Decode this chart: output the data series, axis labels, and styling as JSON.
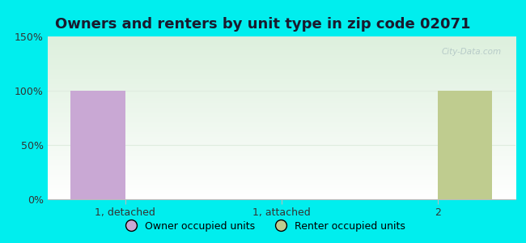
{
  "title": "Owners and renters by unit type in zip code 02071",
  "categories": [
    "1, detached",
    "1, attached",
    "2"
  ],
  "owner_values": [
    100,
    0,
    0
  ],
  "renter_values": [
    0,
    0,
    100
  ],
  "owner_color": "#c9a8d4",
  "renter_color": "#bfcc8f",
  "ylim": [
    0,
    150
  ],
  "yticks": [
    0,
    50,
    100,
    150
  ],
  "ytick_labels": [
    "0%",
    "50%",
    "100%",
    "150%"
  ],
  "bar_width": 0.35,
  "background_outer": "#00eeee",
  "background_inner_top": "#ddf0dd",
  "background_inner_bottom": "#ffffff",
  "grid_color": "#e0ece0",
  "legend_owner": "Owner occupied units",
  "legend_renter": "Renter occupied units",
  "title_fontsize": 13,
  "tick_fontsize": 9,
  "legend_fontsize": 9,
  "title_color": "#1a1a2e"
}
